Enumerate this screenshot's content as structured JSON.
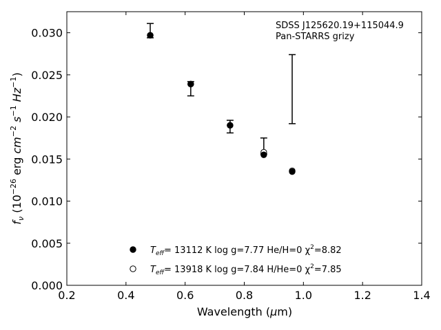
{
  "chart_data": {
    "type": "scatter",
    "annotation_lines": [
      "SDSS J125620.19+115044.9",
      "Pan-STARRS grizy"
    ],
    "xlabel": {
      "prefix": "Wavelength (",
      "symbol": "μ",
      "rest": "m)"
    },
    "ylabel": {
      "var": "f",
      "var_sub": "ν",
      "unit_open": " (10",
      "exp1": "−26",
      "erg": " erg ",
      "cm": "cm",
      "exp2": "−2",
      "s": " s",
      "exp3": "−1",
      "hz": " Hz",
      "exp4": "−1",
      "close": ")"
    },
    "xlim": [
      0.2,
      1.4
    ],
    "ylim": [
      0.0,
      0.0325
    ],
    "xticks": [
      {
        "value": 0.2,
        "label": "0.2"
      },
      {
        "value": 0.4,
        "label": "0.4"
      },
      {
        "value": 0.6,
        "label": "0.6"
      },
      {
        "value": 0.8,
        "label": "0.8"
      },
      {
        "value": 1.0,
        "label": "1.0"
      },
      {
        "value": 1.2,
        "label": "1.2"
      },
      {
        "value": 1.4,
        "label": "1.4"
      }
    ],
    "yticks": [
      {
        "value": 0.0,
        "label": "0.000"
      },
      {
        "value": 0.005,
        "label": "0.005"
      },
      {
        "value": 0.01,
        "label": "0.010"
      },
      {
        "value": 0.015,
        "label": "0.015"
      },
      {
        "value": 0.02,
        "label": "0.020"
      },
      {
        "value": 0.025,
        "label": "0.025"
      },
      {
        "value": 0.03,
        "label": "0.030"
      }
    ],
    "observed": [
      {
        "x": 0.482,
        "y": 0.0302,
        "ylo": 0.0294,
        "yhi": 0.0311
      },
      {
        "x": 0.619,
        "y": 0.0235,
        "ylo": 0.0225,
        "yhi": 0.0242
      },
      {
        "x": 0.752,
        "y": 0.0188,
        "ylo": 0.0181,
        "yhi": 0.0196
      },
      {
        "x": 0.866,
        "y": 0.0165,
        "ylo": 0.0156,
        "yhi": 0.0175
      },
      {
        "x": 0.962,
        "y": 0.0233,
        "ylo": 0.0192,
        "yhi": 0.0274
      }
    ],
    "series": [
      {
        "marker": "filled",
        "x": [
          0.482,
          0.619,
          0.752,
          0.866,
          0.962
        ],
        "y": [
          0.0297,
          0.0239,
          0.019,
          0.0155,
          0.0135
        ],
        "legend": {
          "T": "T",
          "T_sub": "eff",
          "rest": "= 13112 K  log g=7.77  He/H=0  χ",
          "sup": "2",
          "end": "=8.82"
        }
      },
      {
        "marker": "open",
        "x": [
          0.482,
          0.619,
          0.752,
          0.866,
          0.962
        ],
        "y": [
          0.0297,
          0.0239,
          0.019,
          0.0158,
          0.0136
        ],
        "legend": {
          "T": "T",
          "T_sub": "eff",
          "rest": "= 13918 K  log g=7.84  H/He=0  χ",
          "sup": "2",
          "end": "=7.85"
        }
      }
    ],
    "grid": false,
    "legend_position": "bottom-center"
  }
}
